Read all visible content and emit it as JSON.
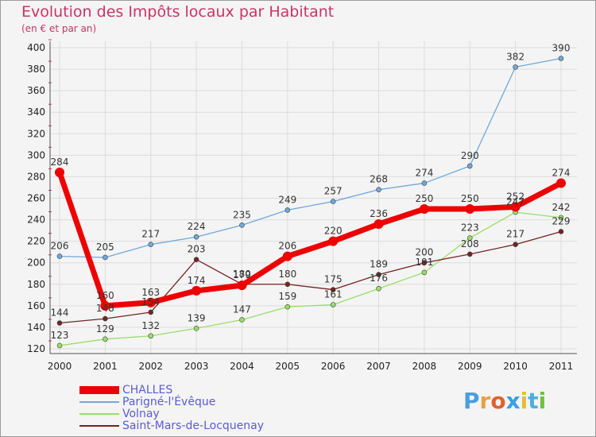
{
  "page": {
    "title": "Evolution des Impôts locaux par Habitant",
    "subtitle": "(en € et par an)"
  },
  "logo": {
    "letters": [
      "P",
      "r",
      "o",
      "x",
      "i",
      "t",
      "i"
    ],
    "colors": [
      "#4a9ee0",
      "#e8a040",
      "#e06030",
      "#3aa0dd",
      "#e0c030",
      "#4ab0e0",
      "#70c040"
    ]
  },
  "colors": {
    "title": "#cc3366",
    "legend_text": "#5b5bd6",
    "grid": "#dcdcdc",
    "axis": "#555555",
    "tick_marks": "#cc3366"
  },
  "chart_data": {
    "type": "line",
    "title": "Evolution des Impôts locaux par Habitant",
    "subtitle": "(en € et par an)",
    "x": [
      "2000",
      "2001",
      "2002",
      "2003",
      "2004",
      "2005",
      "2006",
      "2007",
      "2008",
      "2009",
      "2010",
      "2011"
    ],
    "ylim": [
      120,
      400
    ],
    "yticks": [
      120,
      140,
      160,
      180,
      200,
      220,
      240,
      260,
      280,
      300,
      320,
      340,
      360,
      380,
      400
    ],
    "grid": true,
    "legend_position": "bottom-left",
    "series": [
      {
        "name": "CHALLES",
        "color": "#ee0000",
        "width": 7,
        "marker": 6,
        "values": [
          284,
          160,
          163,
          174,
          179,
          206,
          220,
          236,
          250,
          250,
          252,
          274
        ],
        "labels": [
          "284",
          "160",
          "163",
          "174",
          "179",
          "206",
          "220",
          "236",
          "250",
          "250",
          "252",
          "274"
        ]
      },
      {
        "name": "Parigné-l'Évêque",
        "color": "#6fa8dc",
        "width": 1.3,
        "marker": 3,
        "values": [
          206,
          205,
          217,
          224,
          235,
          249,
          257,
          268,
          274,
          290,
          382,
          390
        ],
        "labels": [
          "206",
          "205",
          "217",
          "224",
          "235",
          "249",
          "257",
          "268",
          "274",
          "290",
          "382",
          "390"
        ]
      },
      {
        "name": "Volnay",
        "color": "#99dd66",
        "width": 1.3,
        "marker": 3,
        "values": [
          123,
          129,
          132,
          139,
          147,
          159,
          161,
          176,
          191,
          223,
          247,
          242
        ],
        "labels": [
          "123",
          "129",
          "132",
          "139",
          "147",
          "159",
          "161",
          "176",
          "191",
          "223",
          "247",
          "242"
        ]
      },
      {
        "name": "Saint-Mars-de-Locquenay",
        "color": "#772222",
        "width": 1.3,
        "marker": 3,
        "values": [
          144,
          148,
          154,
          203,
          180,
          180,
          175,
          189,
          200,
          208,
          217,
          229
        ],
        "labels": [
          "144",
          "148",
          "154",
          "203",
          "180",
          "180",
          "175",
          "189",
          "200",
          "208",
          "217",
          "229"
        ]
      }
    ]
  }
}
